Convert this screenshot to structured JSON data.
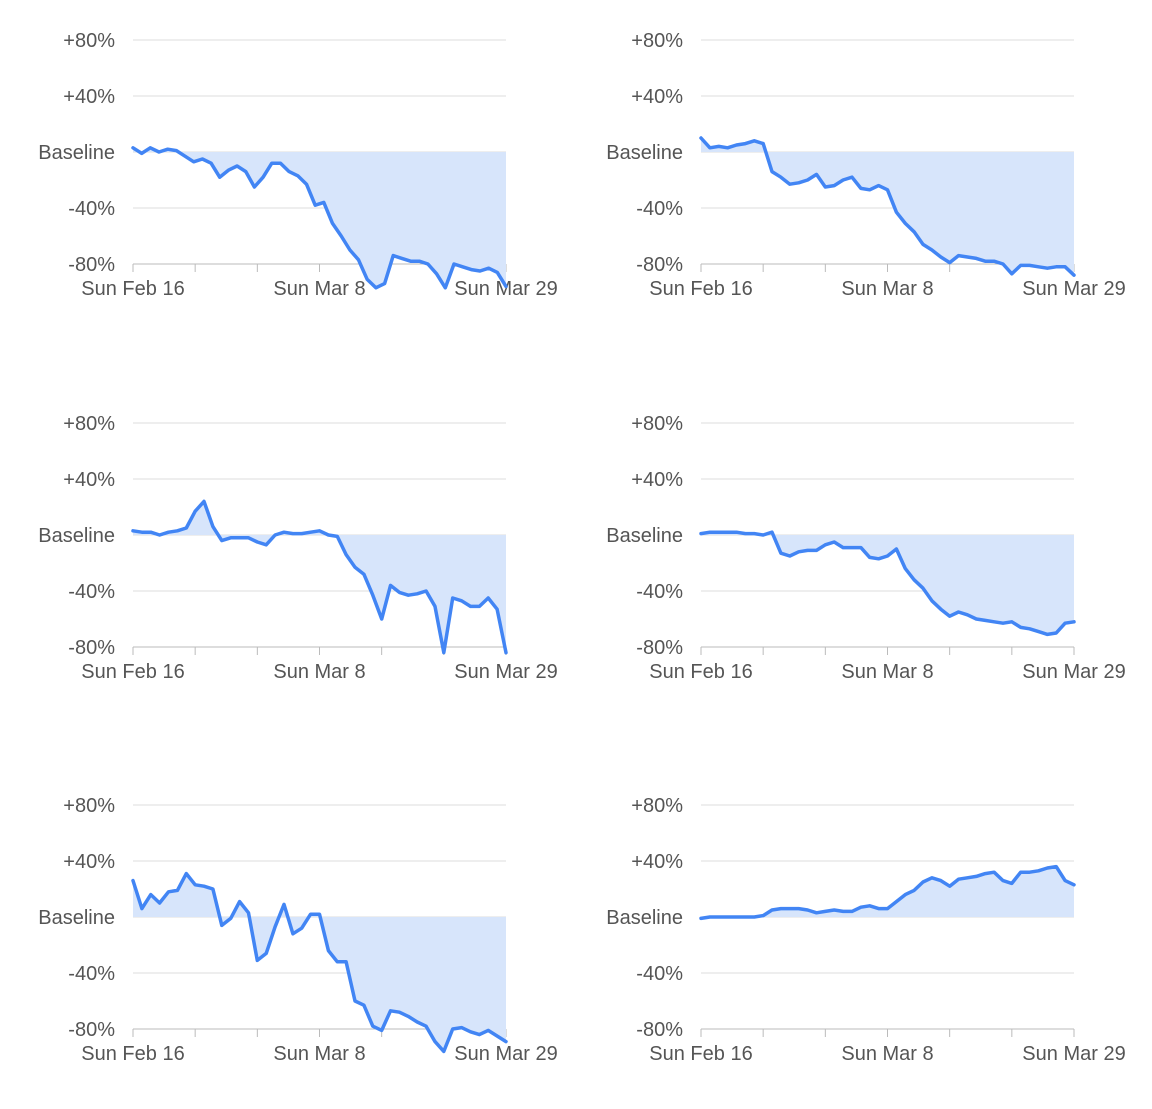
{
  "style": {
    "line_color": "#4285f4",
    "fill_color": "#d7e5fb",
    "grid_color": "#dddddd",
    "axis_color": "#bbbbbb",
    "label_color": "#555555"
  },
  "chart_data": [
    {
      "type": "area",
      "ylim": [
        -80,
        80
      ],
      "yticks": [
        80,
        40,
        0,
        -40,
        -80
      ],
      "ytick_labels": [
        "+80%",
        "+40%",
        "Baseline",
        "-40%",
        "-80%"
      ],
      "xtick_labels": [
        "Sun Feb 16",
        "Sun Mar 8",
        "Sun Mar 29"
      ],
      "x_start": "2020-02-15",
      "x_end": "2020-03-29",
      "series": [
        {
          "values": [
            3,
            -1,
            3,
            0,
            2,
            1,
            -3,
            -7,
            -5,
            -8,
            -18,
            -13,
            -10,
            -14,
            -25,
            -18,
            -8,
            -8,
            -14,
            -17,
            -23,
            -38,
            -36,
            -51,
            -60,
            -70,
            -77,
            -91,
            -97,
            -94,
            -74,
            -76,
            -78,
            -78,
            -80,
            -87,
            -97,
            -80,
            -82,
            -84,
            -85,
            -83,
            -86,
            -96
          ]
        }
      ]
    },
    {
      "type": "area",
      "ylim": [
        -80,
        80
      ],
      "yticks": [
        80,
        40,
        0,
        -40,
        -80
      ],
      "ytick_labels": [
        "+80%",
        "+40%",
        "Baseline",
        "-40%",
        "-80%"
      ],
      "xtick_labels": [
        "Sun Feb 16",
        "Sun Mar 8",
        "Sun Mar 29"
      ],
      "x_start": "2020-02-15",
      "x_end": "2020-03-29",
      "series": [
        {
          "values": [
            10,
            3,
            4,
            3,
            5,
            6,
            8,
            6,
            -14,
            -18,
            -23,
            -22,
            -20,
            -16,
            -25,
            -24,
            -20,
            -18,
            -26,
            -27,
            -24,
            -27,
            -43,
            -51,
            -57,
            -66,
            -70,
            -75,
            -79,
            -74,
            -75,
            -76,
            -78,
            -78,
            -80,
            -87,
            -81,
            -81,
            -82,
            -83,
            -82,
            -82,
            -88
          ]
        }
      ]
    },
    {
      "type": "area",
      "ylim": [
        -80,
        80
      ],
      "yticks": [
        80,
        40,
        0,
        -40,
        -80
      ],
      "ytick_labels": [
        "+80%",
        "+40%",
        "Baseline",
        "-40%",
        "-80%"
      ],
      "xtick_labels": [
        "Sun Feb 16",
        "Sun Mar 8",
        "Sun Mar 29"
      ],
      "x_start": "2020-02-15",
      "x_end": "2020-03-29",
      "series": [
        {
          "values": [
            3,
            2,
            2,
            0,
            2,
            3,
            5,
            17,
            24,
            6,
            -4,
            -2,
            -2,
            -2,
            -5,
            -7,
            0,
            2,
            1,
            1,
            2,
            3,
            0,
            -1,
            -14,
            -23,
            -28,
            -43,
            -60,
            -36,
            -41,
            -43,
            -42,
            -40,
            -51,
            -84,
            -45,
            -47,
            -51,
            -51,
            -45,
            -53,
            -84
          ]
        }
      ]
    },
    {
      "type": "area",
      "ylim": [
        -80,
        80
      ],
      "yticks": [
        80,
        40,
        0,
        -40,
        -80
      ],
      "ytick_labels": [
        "+80%",
        "+40%",
        "Baseline",
        "-40%",
        "-80%"
      ],
      "xtick_labels": [
        "Sun Feb 16",
        "Sun Mar 8",
        "Sun Mar 29"
      ],
      "x_start": "2020-02-15",
      "x_end": "2020-03-29",
      "series": [
        {
          "values": [
            1,
            2,
            2,
            2,
            2,
            1,
            1,
            0,
            2,
            -13,
            -15,
            -12,
            -11,
            -11,
            -7,
            -5,
            -9,
            -9,
            -9,
            -16,
            -17,
            -15,
            -10,
            -24,
            -32,
            -38,
            -47,
            -53,
            -58,
            -55,
            -57,
            -60,
            -61,
            -62,
            -63,
            -62,
            -66,
            -67,
            -69,
            -71,
            -70,
            -63,
            -62
          ]
        }
      ]
    },
    {
      "type": "area",
      "ylim": [
        -80,
        80
      ],
      "yticks": [
        80,
        40,
        0,
        -40,
        -80
      ],
      "ytick_labels": [
        "+80%",
        "+40%",
        "Baseline",
        "-40%",
        "-80%"
      ],
      "xtick_labels": [
        "Sun Feb 16",
        "Sun Mar 8",
        "Sun Mar 29"
      ],
      "x_start": "2020-02-15",
      "x_end": "2020-03-29",
      "series": [
        {
          "values": [
            26,
            6,
            16,
            10,
            18,
            19,
            31,
            23,
            22,
            20,
            -6,
            -1,
            11,
            3,
            -31,
            -26,
            -7,
            9,
            -12,
            -8,
            2,
            2,
            -24,
            -32,
            -32,
            -60,
            -63,
            -78,
            -81,
            -67,
            -68,
            -71,
            -75,
            -78,
            -89,
            -96,
            -80,
            -79,
            -82,
            -84,
            -81,
            -85,
            -89
          ]
        }
      ]
    },
    {
      "type": "area",
      "ylim": [
        -80,
        80
      ],
      "yticks": [
        80,
        40,
        0,
        -40,
        -80
      ],
      "ytick_labels": [
        "+80%",
        "+40%",
        "Baseline",
        "-40%",
        "-80%"
      ],
      "xtick_labels": [
        "Sun Feb 16",
        "Sun Mar 8",
        "Sun Mar 29"
      ],
      "x_start": "2020-02-15",
      "x_end": "2020-03-29",
      "series": [
        {
          "values": [
            -1,
            0,
            0,
            0,
            0,
            0,
            0,
            1,
            5,
            6,
            6,
            6,
            5,
            3,
            4,
            5,
            4,
            4,
            7,
            8,
            6,
            6,
            11,
            16,
            19,
            25,
            28,
            26,
            22,
            27,
            28,
            29,
            31,
            32,
            26,
            24,
            32,
            32,
            33,
            35,
            36,
            26,
            23
          ]
        }
      ]
    }
  ]
}
